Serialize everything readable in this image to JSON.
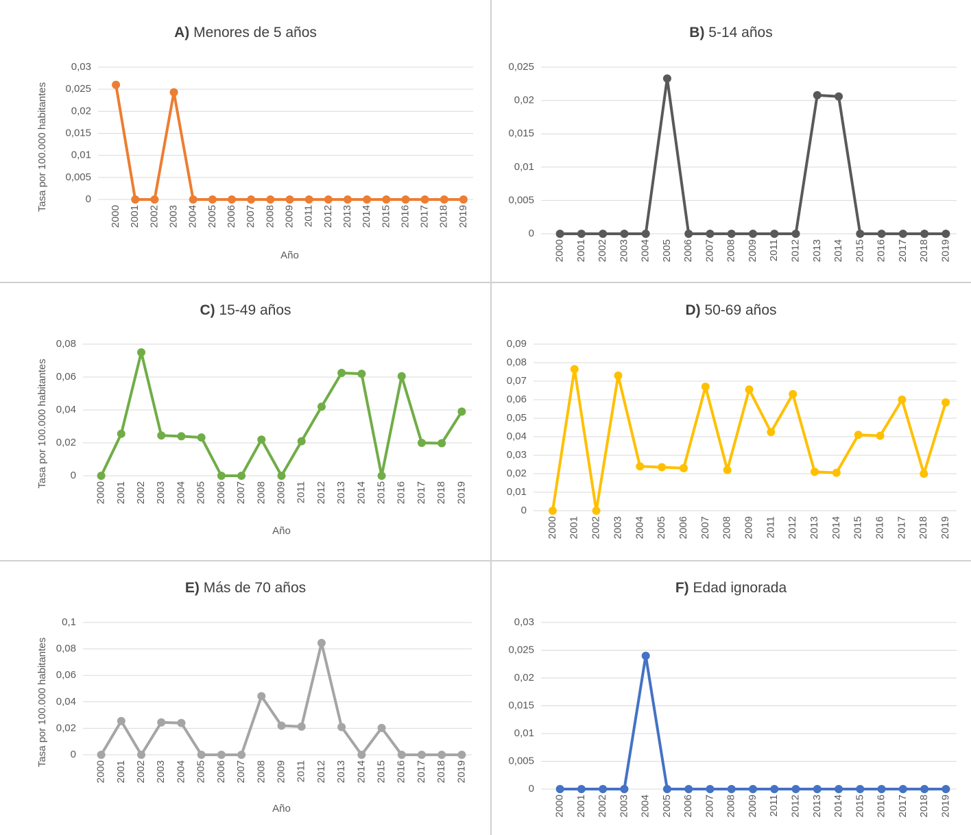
{
  "chart_data": [
    {
      "type": "line",
      "panel": "A)",
      "title": "Menores de 5 años",
      "y_label": "Tasa por 100.000 habitantes",
      "x_label": "Año",
      "color": "#ED7D31",
      "categories": [
        "2000",
        "2001",
        "2002",
        "2003",
        "2004",
        "2005",
        "2006",
        "2007",
        "2008",
        "2009",
        "2011",
        "2012",
        "2013",
        "2014",
        "2015",
        "2016",
        "2017",
        "2018",
        "2019"
      ],
      "values": [
        0.026,
        0,
        0,
        0.0243,
        0,
        0,
        0,
        0,
        0,
        0,
        0,
        0,
        0,
        0,
        0,
        0,
        0,
        0,
        0
      ],
      "ylim": [
        0,
        0.03
      ],
      "yticks": [
        0,
        {
          "value": 0.005,
          "label": "0,005"
        },
        {
          "value": 0.01,
          "label": "0,01"
        },
        {
          "value": 0.015,
          "label": "0,015"
        },
        {
          "value": 0.02,
          "label": "0,02"
        },
        {
          "value": 0.025,
          "label": "0,025"
        },
        {
          "value": 0.03,
          "label": "0,03"
        }
      ],
      "grid": true
    },
    {
      "type": "line",
      "panel": "B)",
      "title": "5-14 años",
      "color": "#595959",
      "categories": [
        "2000",
        "2001",
        "2002",
        "2003",
        "2004",
        "2005",
        "2006",
        "2007",
        "2008",
        "2009",
        "2011",
        "2012",
        "2013",
        "2014",
        "2015",
        "2016",
        "2017",
        "2018",
        "2019"
      ],
      "values": [
        0,
        0,
        0,
        0,
        0,
        0.0233,
        0,
        0,
        0,
        0,
        0,
        0,
        0.0208,
        0.0206,
        0,
        0,
        0,
        0,
        0
      ],
      "ylim": [
        0,
        0.025
      ],
      "yticks": [
        0,
        {
          "value": 0.005,
          "label": "0,005"
        },
        {
          "value": 0.01,
          "label": "0,01"
        },
        {
          "value": 0.015,
          "label": "0,015"
        },
        {
          "value": 0.02,
          "label": "0,02"
        },
        {
          "value": 0.025,
          "label": "0,025"
        }
      ],
      "grid": true
    },
    {
      "type": "line",
      "panel": "C)",
      "title": "15-49 años",
      "y_label": "Tasa por 100.000 habitantes",
      "x_label": "Año",
      "color": "#70AD47",
      "categories": [
        "2000",
        "2001",
        "2002",
        "2003",
        "2004",
        "2005",
        "2006",
        "2007",
        "2008",
        "2009",
        "2011",
        "2012",
        "2013",
        "2014",
        "2015",
        "2016",
        "2017",
        "2018",
        "2019"
      ],
      "values": [
        0,
        0.0255,
        0.075,
        0.0245,
        0.024,
        0.0233,
        0,
        0,
        0.022,
        0,
        0.021,
        0.042,
        0.0625,
        0.062,
        0,
        0.0605,
        0.02,
        0.0198,
        0.039
      ],
      "ylim": [
        0,
        0.08
      ],
      "yticks": [
        0,
        {
          "value": 0.02,
          "label": "0,02"
        },
        {
          "value": 0.04,
          "label": "0,04"
        },
        {
          "value": 0.06,
          "label": "0,06"
        },
        {
          "value": 0.08,
          "label": "0,08"
        }
      ],
      "grid": true
    },
    {
      "type": "line",
      "panel": "D)",
      "title": "50-69 años",
      "color": "#FFC000",
      "categories": [
        "2000",
        "2001",
        "2002",
        "2003",
        "2004",
        "2005",
        "2006",
        "2007",
        "2008",
        "2009",
        "2011",
        "2012",
        "2013",
        "2014",
        "2015",
        "2016",
        "2017",
        "2018",
        "2019"
      ],
      "values": [
        0,
        0.0765,
        0,
        0.073,
        0.024,
        0.0235,
        0.023,
        0.067,
        0.022,
        0.0655,
        0.0425,
        0.063,
        0.021,
        0.0205,
        0.041,
        0.0405,
        0.06,
        0.02,
        0.0585
      ],
      "ylim": [
        0,
        0.09
      ],
      "yticks": [
        0,
        {
          "value": 0.01,
          "label": "0,01"
        },
        {
          "value": 0.02,
          "label": "0,02"
        },
        {
          "value": 0.03,
          "label": "0,03"
        },
        {
          "value": 0.04,
          "label": "0,04"
        },
        {
          "value": 0.05,
          "label": "0,05"
        },
        {
          "value": 0.06,
          "label": "0,06"
        },
        {
          "value": 0.07,
          "label": "0,07"
        },
        {
          "value": 0.08,
          "label": "0,08"
        },
        {
          "value": 0.09,
          "label": "0,09"
        }
      ],
      "grid": true
    },
    {
      "type": "line",
      "panel": "E)",
      "title": "Más de 70 años",
      "y_label": "Tasa por 100.000 habitantes",
      "x_label": "Año",
      "color": "#A5A5A5",
      "categories": [
        "2000",
        "2001",
        "2002",
        "2003",
        "2004",
        "2005",
        "2006",
        "2007",
        "2008",
        "2009",
        "2011",
        "2012",
        "2013",
        "2014",
        "2015",
        "2016",
        "2017",
        "2018",
        "2019"
      ],
      "values": [
        0,
        0.0255,
        0,
        0.0245,
        0.024,
        0,
        0,
        0,
        0.0443,
        0.022,
        0.0213,
        0.0845,
        0.021,
        0,
        0.0203,
        0,
        0,
        0,
        0
      ],
      "ylim": [
        0,
        0.1
      ],
      "yticks": [
        0,
        {
          "value": 0.02,
          "label": "0,02"
        },
        {
          "value": 0.04,
          "label": "0,04"
        },
        {
          "value": 0.06,
          "label": "0,06"
        },
        {
          "value": 0.08,
          "label": "0,08"
        },
        {
          "value": 0.1,
          "label": "0,1"
        }
      ],
      "grid": true
    },
    {
      "type": "line",
      "panel": "F)",
      "title": "Edad ignorada",
      "color": "#4472C4",
      "categories": [
        "2000",
        "2001",
        "2002",
        "2003",
        "2004",
        "2005",
        "2006",
        "2007",
        "2008",
        "2009",
        "2011",
        "2012",
        "2013",
        "2014",
        "2015",
        "2016",
        "2017",
        "2018",
        "2019"
      ],
      "values": [
        0,
        0,
        0,
        0,
        0.024,
        0,
        0,
        0,
        0,
        0,
        0,
        0,
        0,
        0,
        0,
        0,
        0,
        0,
        0
      ],
      "ylim": [
        0,
        0.03
      ],
      "yticks": [
        0,
        {
          "value": 0.005,
          "label": "0,005"
        },
        {
          "value": 0.01,
          "label": "0,01"
        },
        {
          "value": 0.015,
          "label": "0,015"
        },
        {
          "value": 0.02,
          "label": "0,02"
        },
        {
          "value": 0.025,
          "label": "0,025"
        },
        {
          "value": 0.03,
          "label": "0,03"
        }
      ],
      "grid": true
    }
  ]
}
